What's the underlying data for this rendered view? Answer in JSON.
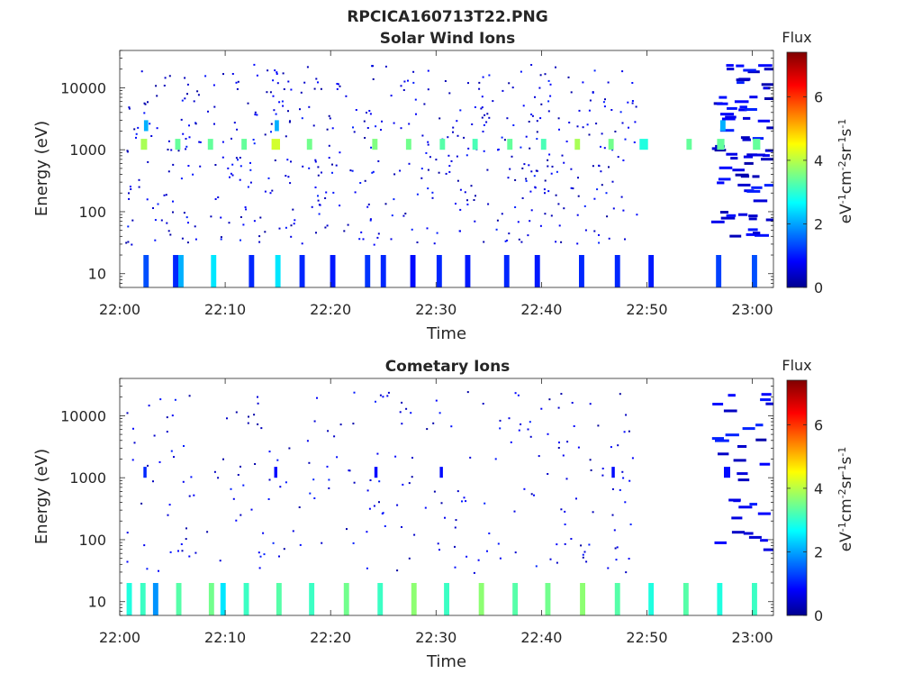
{
  "figure_title": "RPCICA160713T22.PNG",
  "colorbar": {
    "title": "Flux",
    "label_parts": [
      "eV",
      "-1",
      "cm",
      "-2",
      "sr",
      "-1",
      "s",
      "-1"
    ],
    "ticks": [
      "0",
      "2",
      "4",
      "6"
    ],
    "range": [
      0,
      7.4
    ],
    "colormap": "jet"
  },
  "chart_data": [
    {
      "type": "heatmap",
      "title": "Solar Wind Ions",
      "xlabel": "Time",
      "ylabel": "Energy (eV)",
      "x_ticks": [
        "22:00",
        "22:10",
        "22:20",
        "22:30",
        "22:40",
        "22:50",
        "23:00"
      ],
      "x_range_minutes": [
        0,
        62
      ],
      "y_ticks": [
        "10",
        "100",
        "1000",
        "10000"
      ],
      "y_scale": "log",
      "y_range": [
        6,
        40000
      ],
      "z_range": [
        0,
        7.4
      ],
      "sparse_noise_until_minute": 49,
      "dense_after_minute": 56,
      "bands": [
        {
          "t": 2.3,
          "w": 0.6,
          "e1": 1000,
          "e2": 1500,
          "v": 4
        },
        {
          "t": 5.5,
          "w": 0.5,
          "e1": 1000,
          "e2": 1500,
          "v": 3.5
        },
        {
          "t": 8.6,
          "w": 0.5,
          "e1": 1000,
          "e2": 1500,
          "v": 3.5
        },
        {
          "t": 11.8,
          "w": 0.5,
          "e1": 1000,
          "e2": 1500,
          "v": 3.5
        },
        {
          "t": 14.8,
          "w": 0.8,
          "e1": 1000,
          "e2": 1500,
          "v": 4.3
        },
        {
          "t": 18.0,
          "w": 0.5,
          "e1": 1000,
          "e2": 1500,
          "v": 3.6
        },
        {
          "t": 24.2,
          "w": 0.5,
          "e1": 1000,
          "e2": 1500,
          "v": 3.7
        },
        {
          "t": 27.4,
          "w": 0.5,
          "e1": 1000,
          "e2": 1500,
          "v": 3.6
        },
        {
          "t": 30.6,
          "w": 0.5,
          "e1": 1000,
          "e2": 1500,
          "v": 3.4
        },
        {
          "t": 33.7,
          "w": 0.5,
          "e1": 1000,
          "e2": 1500,
          "v": 3.3
        },
        {
          "t": 37.0,
          "w": 0.5,
          "e1": 1000,
          "e2": 1500,
          "v": 3.5
        },
        {
          "t": 40.2,
          "w": 0.5,
          "e1": 1000,
          "e2": 1500,
          "v": 3.3
        },
        {
          "t": 43.4,
          "w": 0.5,
          "e1": 1000,
          "e2": 1500,
          "v": 4
        },
        {
          "t": 46.6,
          "w": 0.5,
          "e1": 1000,
          "e2": 1500,
          "v": 3.6
        },
        {
          "t": 49.7,
          "w": 0.8,
          "e1": 1000,
          "e2": 1500,
          "v": 3
        },
        {
          "t": 54.0,
          "w": 0.5,
          "e1": 1000,
          "e2": 1500,
          "v": 3.5
        },
        {
          "t": 57.0,
          "w": 0.7,
          "e1": 1000,
          "e2": 1500,
          "v": 3.5
        },
        {
          "t": 60.4,
          "w": 0.7,
          "e1": 1000,
          "e2": 1500,
          "v": 3.5
        },
        {
          "t": 2.5,
          "w": 0.4,
          "e1": 2000,
          "e2": 3000,
          "v": 2.2
        },
        {
          "t": 14.9,
          "w": 0.4,
          "e1": 2000,
          "e2": 3000,
          "v": 2.2
        },
        {
          "t": 57.2,
          "w": 0.5,
          "e1": 2000,
          "e2": 3000,
          "v": 2.2
        }
      ],
      "low_bars": [
        {
          "t": 2.5,
          "v": 1.5
        },
        {
          "t": 5.3,
          "v": 1.2
        },
        {
          "t": 5.8,
          "v": 2.2
        },
        {
          "t": 8.9,
          "v": 2.6
        },
        {
          "t": 12.5,
          "v": 1.2
        },
        {
          "t": 15.0,
          "v": 2.6
        },
        {
          "t": 17.3,
          "v": 1.2
        },
        {
          "t": 20.2,
          "v": 1.1
        },
        {
          "t": 23.5,
          "v": 1.3
        },
        {
          "t": 25.0,
          "v": 1.2
        },
        {
          "t": 27.8,
          "v": 1.0
        },
        {
          "t": 30.3,
          "v": 1.2
        },
        {
          "t": 33.0,
          "v": 1.1
        },
        {
          "t": 36.7,
          "v": 1.2
        },
        {
          "t": 39.6,
          "v": 1.1
        },
        {
          "t": 43.8,
          "v": 1.2
        },
        {
          "t": 47.2,
          "v": 1.2
        },
        {
          "t": 50.4,
          "v": 1.1
        },
        {
          "t": 56.8,
          "v": 1.4
        },
        {
          "t": 60.2,
          "v": 1.5
        }
      ]
    },
    {
      "type": "heatmap",
      "title": "Cometary Ions",
      "xlabel": "Time",
      "ylabel": "Energy (eV)",
      "x_ticks": [
        "22:00",
        "22:10",
        "22:20",
        "22:30",
        "22:40",
        "22:50",
        "23:00"
      ],
      "x_range_minutes": [
        0,
        62
      ],
      "y_ticks": [
        "10",
        "100",
        "1000",
        "10000"
      ],
      "y_scale": "log",
      "y_range": [
        6,
        40000
      ],
      "z_range": [
        0,
        7.4
      ],
      "sparse_noise_until_minute": 49,
      "dense_after_minute": 56,
      "bands": [
        {
          "t": 2.4,
          "w": 0.3,
          "e1": 1000,
          "e2": 1500,
          "v": 1.2
        },
        {
          "t": 14.8,
          "w": 0.3,
          "e1": 1000,
          "e2": 1500,
          "v": 1.0
        },
        {
          "t": 24.3,
          "w": 0.3,
          "e1": 1000,
          "e2": 1500,
          "v": 1.0
        },
        {
          "t": 30.5,
          "w": 0.3,
          "e1": 1000,
          "e2": 1500,
          "v": 1.0
        },
        {
          "t": 46.8,
          "w": 0.3,
          "e1": 1000,
          "e2": 1500,
          "v": 1.0
        },
        {
          "t": 57.6,
          "w": 0.6,
          "e1": 1000,
          "e2": 1500,
          "v": 1.0
        }
      ],
      "low_bars": [
        {
          "t": 0.9,
          "v": 3.0
        },
        {
          "t": 2.2,
          "v": 3.2
        },
        {
          "t": 3.4,
          "v": 2.0
        },
        {
          "t": 5.6,
          "v": 3.4
        },
        {
          "t": 8.7,
          "v": 3.6
        },
        {
          "t": 9.8,
          "v": 2.6
        },
        {
          "t": 12.0,
          "v": 3.2
        },
        {
          "t": 15.1,
          "v": 3.4
        },
        {
          "t": 18.2,
          "v": 3.2
        },
        {
          "t": 21.5,
          "v": 3.6
        },
        {
          "t": 24.7,
          "v": 3.2
        },
        {
          "t": 27.9,
          "v": 3.8
        },
        {
          "t": 31.0,
          "v": 3.2
        },
        {
          "t": 34.3,
          "v": 3.8
        },
        {
          "t": 37.5,
          "v": 3.4
        },
        {
          "t": 40.6,
          "v": 3.6
        },
        {
          "t": 43.9,
          "v": 3.8
        },
        {
          "t": 47.2,
          "v": 3.4
        },
        {
          "t": 50.4,
          "v": 3.0
        },
        {
          "t": 53.7,
          "v": 3.4
        },
        {
          "t": 56.9,
          "v": 3.0
        },
        {
          "t": 60.2,
          "v": 3.2
        }
      ]
    }
  ]
}
